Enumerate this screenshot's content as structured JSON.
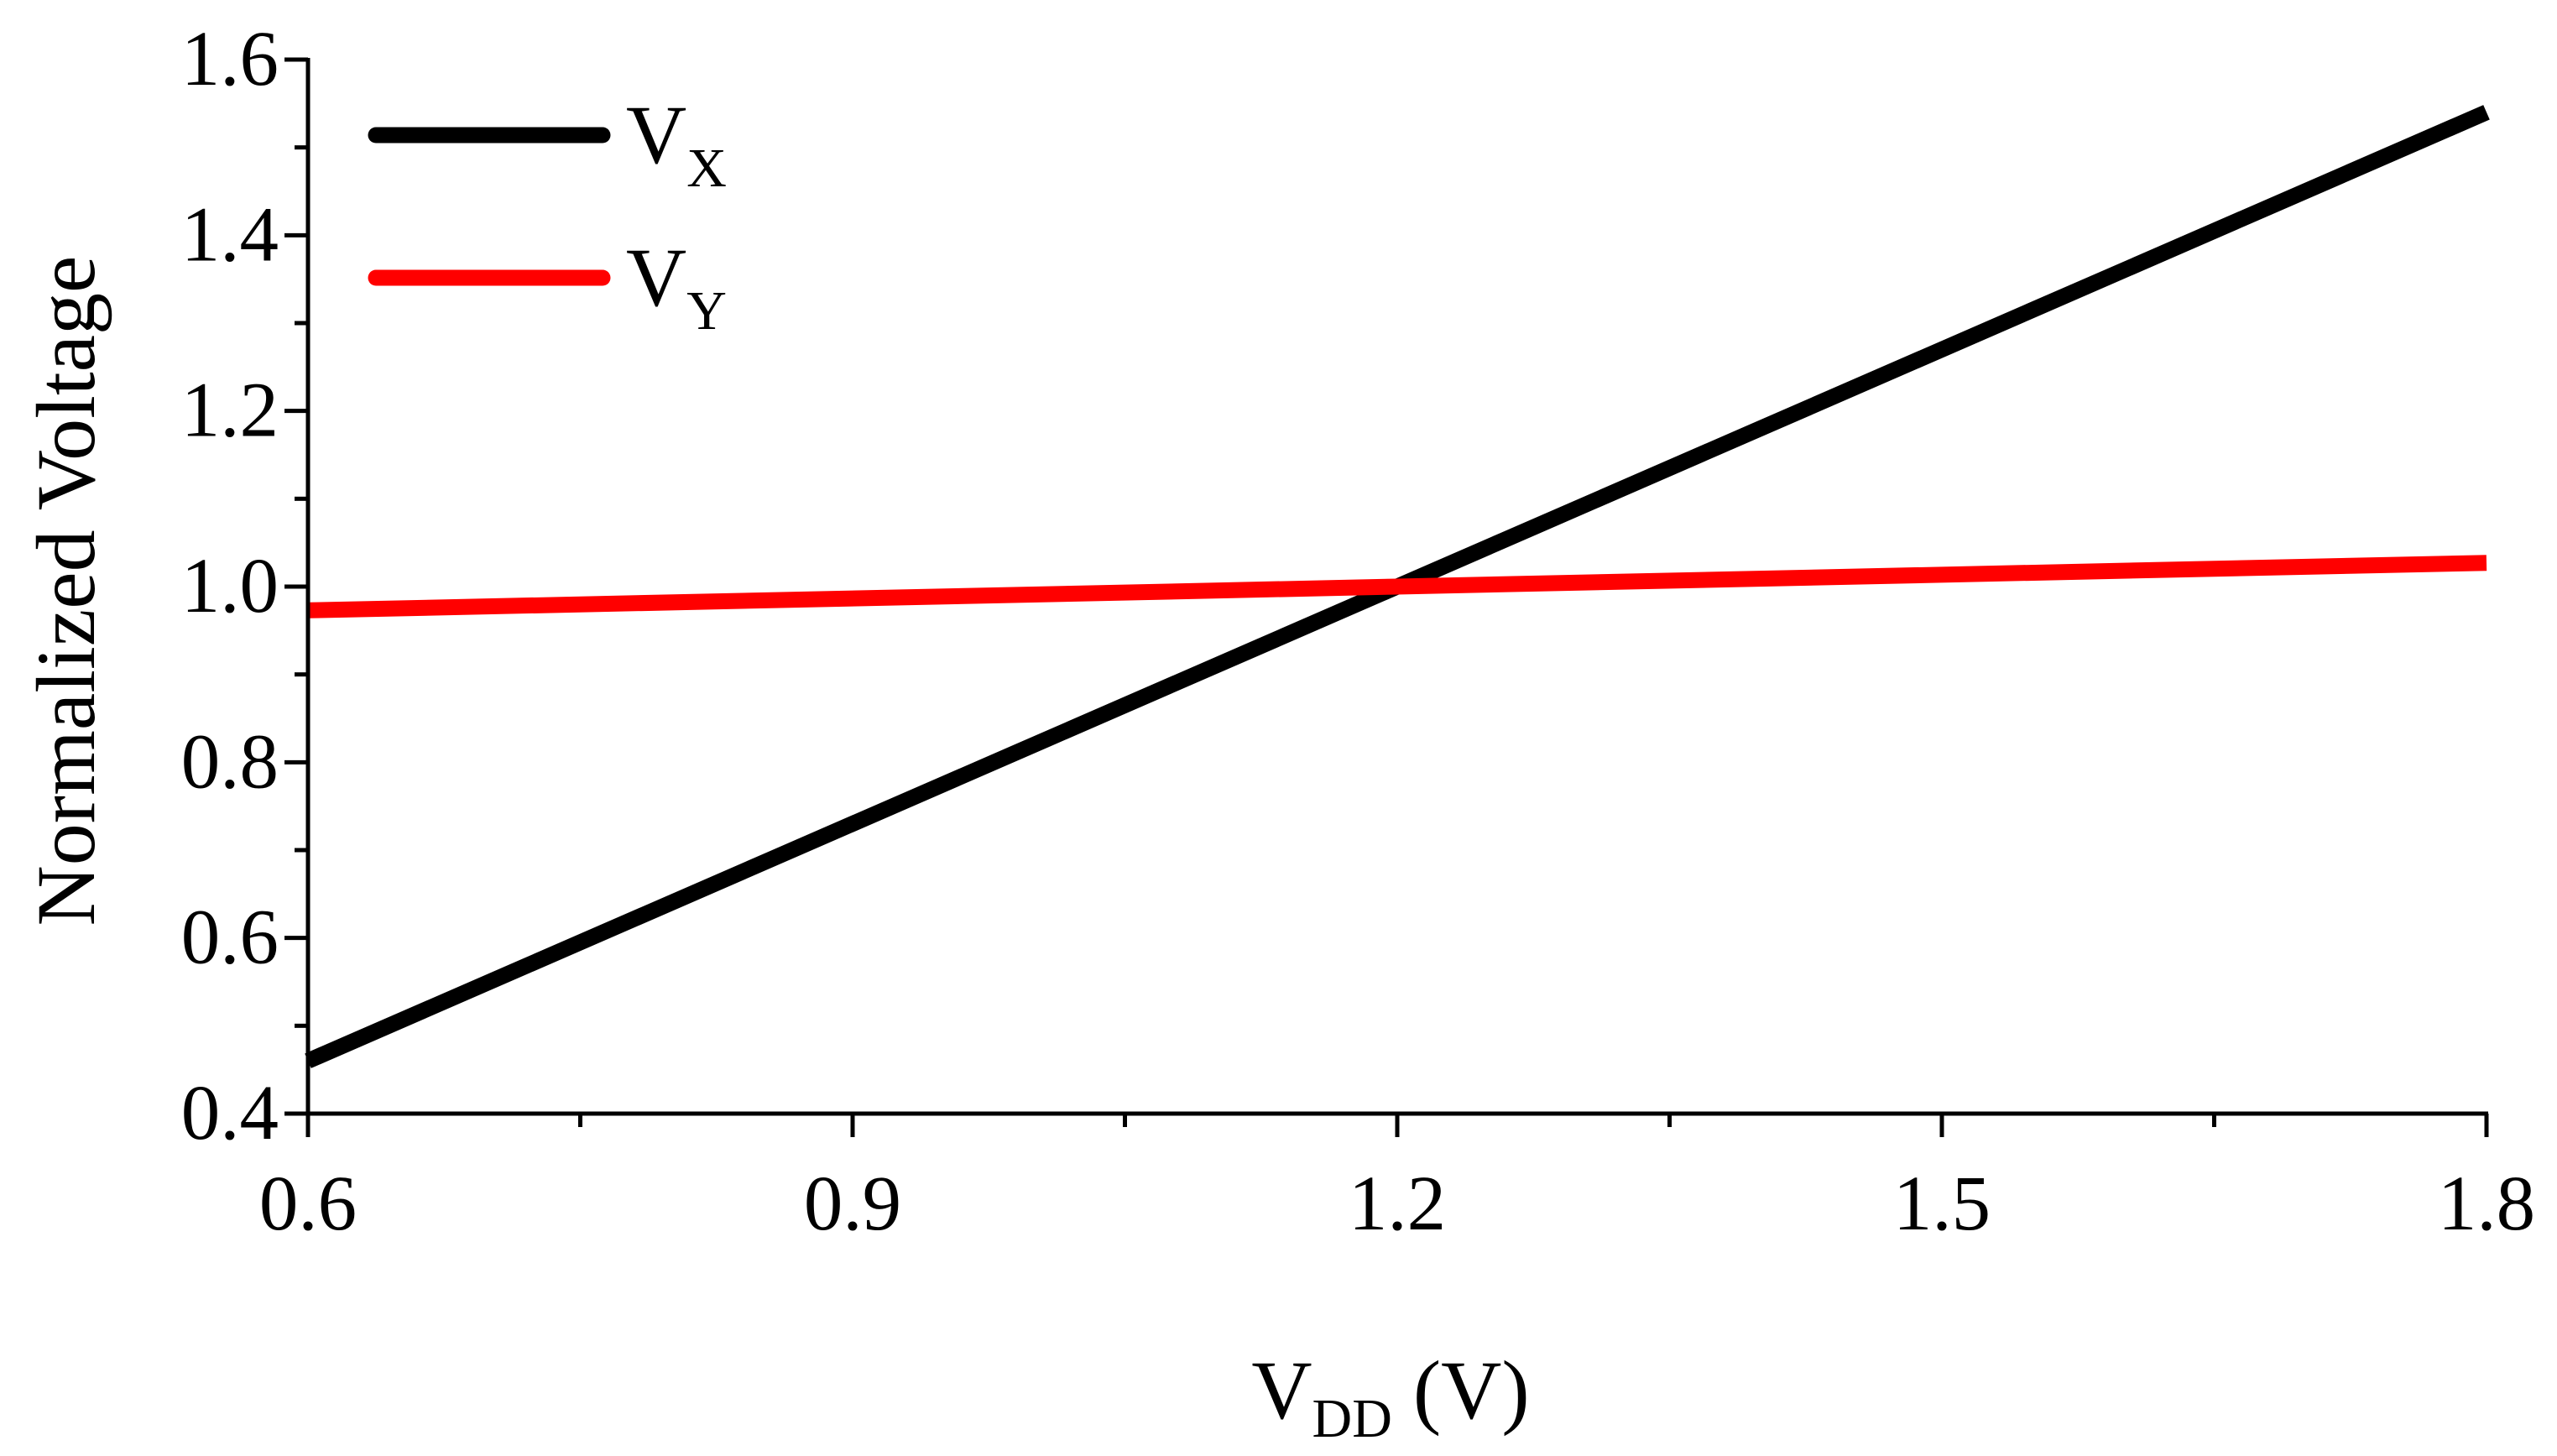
{
  "chart_data": {
    "type": "line",
    "xlabel": {
      "main": "V",
      "sub": "DD",
      "unit": " (V)"
    },
    "ylabel": "Normalized Voltage",
    "xlim": [
      0.6,
      1.8
    ],
    "ylim": [
      0.4,
      1.6
    ],
    "x_ticks": [
      0.6,
      0.9,
      1.2,
      1.5,
      1.8
    ],
    "x_tick_labels": [
      "0.6",
      "0.9",
      "1.2",
      "1.5",
      "1.8"
    ],
    "y_ticks": [
      0.4,
      0.6,
      0.8,
      1.0,
      1.2,
      1.4,
      1.6
    ],
    "y_tick_labels": [
      "0.4",
      "0.6",
      "0.8",
      "1.0",
      "1.2",
      "1.4",
      "1.6"
    ],
    "grid": false,
    "legend_position": "top-left",
    "series": [
      {
        "name": "V",
        "sub": "X",
        "color": "#000000",
        "x": [
          0.6,
          1.2,
          1.8
        ],
        "y": [
          0.46,
          1.0,
          1.54
        ]
      },
      {
        "name": "V",
        "sub": "Y",
        "color": "#ff0000",
        "x": [
          0.6,
          1.2,
          1.8
        ],
        "y": [
          0.973,
          1.0,
          1.027
        ]
      }
    ]
  }
}
